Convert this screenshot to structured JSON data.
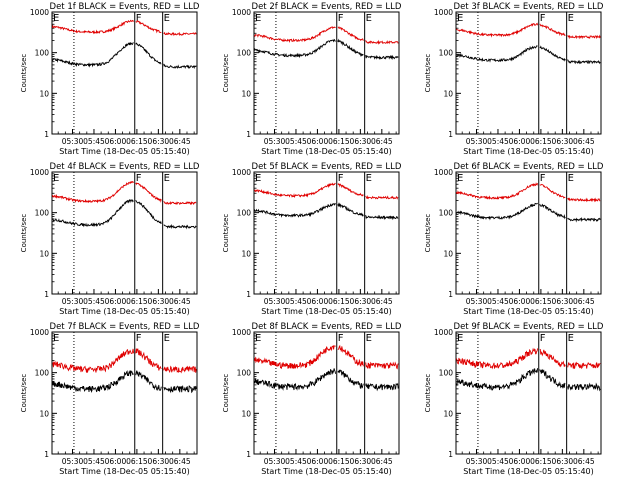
{
  "chart_data": {
    "type": "line",
    "layout": "3x3 grid",
    "xlabel": "Start Time (18-Dec-05 05:15:40)",
    "ylabel": "Counts/sec",
    "yscale": "log",
    "ylim": [
      1,
      1000
    ],
    "yticks": [
      "1",
      "10",
      "100",
      "1000"
    ],
    "x_tick_labels": [
      "05:30",
      "05:45",
      "06:00",
      "06:15",
      "06:30",
      "06:45"
    ],
    "x_ticks_minutes": [
      30,
      45,
      60,
      75,
      90,
      105
    ],
    "xlim_minutes": [
      15.67,
      117
    ],
    "grid": false,
    "legend": "in title",
    "colors": {
      "events": "#000000",
      "lld": "#e00000"
    },
    "region_markers": [
      {
        "label": "E",
        "style": "solid",
        "minute": 15.67
      },
      {
        "label": "",
        "style": "dotted",
        "minute": 31
      },
      {
        "label": "F",
        "style": "solid",
        "minute": 73.5
      },
      {
        "label": "E",
        "style": "solid",
        "minute": 93
      }
    ],
    "panels": [
      {
        "title": "Det 1f BLACK = Events, RED = LLD",
        "lld_base": 320,
        "ev_base": 50,
        "lld_peak": 600,
        "ev_peak": 170,
        "dropout": true
      },
      {
        "title": "Det 2f BLACK = Events, RED = LLD",
        "lld_base": 200,
        "ev_base": 85,
        "lld_peak": 420,
        "ev_peak": 200,
        "dropout": true
      },
      {
        "title": "Det 3f BLACK = Events, RED = LLD",
        "lld_base": 270,
        "ev_base": 65,
        "lld_peak": 500,
        "ev_peak": 140,
        "dropout": true
      },
      {
        "title": "Det 4f BLACK = Events, RED = LLD",
        "lld_base": 190,
        "ev_base": 50,
        "lld_peak": 550,
        "ev_peak": 200,
        "dropout": true
      },
      {
        "title": "Det 5f BLACK = Events, RED = LLD",
        "lld_base": 260,
        "ev_base": 85,
        "lld_peak": 500,
        "ev_peak": 160,
        "dropout": true
      },
      {
        "title": "Det 6f BLACK = Events, RED = LLD",
        "lld_base": 230,
        "ev_base": 75,
        "lld_peak": 500,
        "ev_peak": 160,
        "dropout": true
      },
      {
        "title": "Det 7f BLACK = Events, RED = LLD",
        "lld_base": 120,
        "ev_base": 40,
        "lld_peak": 350,
        "ev_peak": 100,
        "dropout": false
      },
      {
        "title": "Det 8f BLACK = Events, RED = LLD",
        "lld_base": 150,
        "ev_base": 45,
        "lld_peak": 450,
        "ev_peak": 110,
        "dropout": false
      },
      {
        "title": "Det 9f BLACK = Events, RED = LLD",
        "lld_base": 150,
        "ev_base": 45,
        "lld_peak": 350,
        "ev_peak": 110,
        "dropout": false
      }
    ]
  }
}
